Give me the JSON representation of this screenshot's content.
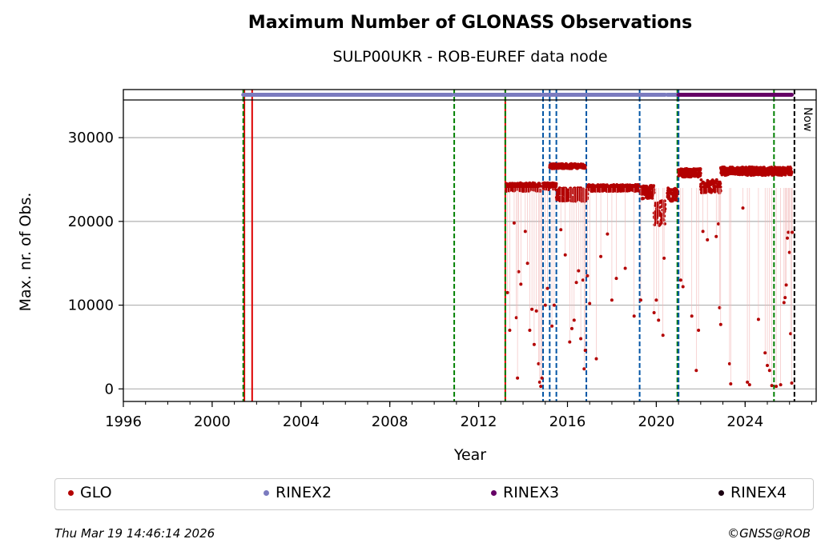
{
  "title": "Maximum Number of GLONASS Observations",
  "subtitle": "SULP00UKR - ROB-EUREF data node",
  "footer_date": "Thu Mar 19 14:46:14 2026",
  "footer_credit": "©GNSS@ROB",
  "chart_data": {
    "type": "scatter",
    "title": "Maximum Number of GLONASS Observations",
    "subtitle": "SULP00UKR - ROB-EUREF data node",
    "xlabel": "Year",
    "ylabel": "Max. nr. of Obs.",
    "xlim": [
      1996,
      2027.2
    ],
    "ylim": [
      -1500,
      34500
    ],
    "x_ticks": [
      1996,
      2000,
      2004,
      2008,
      2012,
      2016,
      2020,
      2024
    ],
    "y_ticks": [
      0,
      10000,
      20000,
      30000
    ],
    "y_tick_labels": [
      "0",
      "10000",
      "20000",
      "30000"
    ],
    "grid": "horizontal",
    "now_label": "Now",
    "now_year": 2026.22,
    "colors": {
      "glo": "#b30000",
      "rinex2": "#7b7bbf",
      "rinex3": "#660066",
      "rinex4": "#1a0010",
      "green_line": "#008000",
      "blue_line": "#0055a5",
      "red_line": "#dd0000",
      "now_line": "#000000"
    },
    "vertical_lines": {
      "red_solid": [
        2001.45,
        2001.8,
        2013.2
      ],
      "green_dashed": [
        2001.4,
        2010.9,
        2013.2,
        2020.95,
        2021.0,
        2025.3
      ],
      "blue_dashed": [
        2014.9,
        2015.2,
        2015.5,
        2016.85,
        2019.25,
        2021.0
      ]
    },
    "rinex_bars": [
      {
        "name": "RINEX2",
        "start": 2001.4,
        "end": 2010.8
      },
      {
        "name": "RINEX2",
        "start": 2010.95,
        "end": 2014.8
      },
      {
        "name": "RINEX2",
        "start": 2014.9,
        "end": 2020.4
      },
      {
        "name": "RINEX2",
        "start": 2020.5,
        "end": 2020.95
      },
      {
        "name": "RINEX3",
        "start": 2021.0,
        "end": 2026.1
      }
    ],
    "series": [
      {
        "name": "GLO",
        "segments": [
          {
            "from": 2013.25,
            "to": 2014.8,
            "value": 24100,
            "jitter": 500
          },
          {
            "from": 2014.9,
            "to": 2015.5,
            "value": 24200,
            "jitter": 400
          },
          {
            "from": 2015.2,
            "to": 2016.8,
            "value": 26600,
            "jitter": 300
          },
          {
            "from": 2015.5,
            "to": 2016.9,
            "value": 23200,
            "jitter": 800
          },
          {
            "from": 2016.9,
            "to": 2019.2,
            "value": 24000,
            "jitter": 400
          },
          {
            "from": 2019.3,
            "to": 2019.9,
            "value": 23500,
            "jitter": 800
          },
          {
            "from": 2019.9,
            "to": 2020.4,
            "value": 21000,
            "jitter": 1500
          },
          {
            "from": 2020.5,
            "to": 2020.95,
            "value": 23200,
            "jitter": 800
          },
          {
            "from": 2021.0,
            "to": 2022.0,
            "value": 25800,
            "jitter": 500
          },
          {
            "from": 2022.0,
            "to": 2022.9,
            "value": 24200,
            "jitter": 800
          },
          {
            "from": 2022.9,
            "to": 2026.1,
            "value": 26000,
            "jitter": 500
          }
        ],
        "outliers": [
          [
            2013.3,
            11500
          ],
          [
            2013.4,
            7000
          ],
          [
            2013.6,
            19800
          ],
          [
            2013.7,
            8500
          ],
          [
            2013.8,
            14000
          ],
          [
            2013.9,
            12500
          ],
          [
            2013.75,
            1300
          ],
          [
            2014.1,
            18800
          ],
          [
            2014.2,
            15000
          ],
          [
            2014.3,
            7000
          ],
          [
            2014.4,
            9500
          ],
          [
            2014.5,
            5300
          ],
          [
            2014.6,
            9300
          ],
          [
            2014.7,
            3000
          ],
          [
            2014.75,
            800
          ],
          [
            2014.8,
            300
          ],
          [
            2014.85,
            1300
          ],
          [
            2015.0,
            10000
          ],
          [
            2015.1,
            12000
          ],
          [
            2015.3,
            7500
          ],
          [
            2015.4,
            10000
          ],
          [
            2015.7,
            19000
          ],
          [
            2015.9,
            16000
          ],
          [
            2016.1,
            5600
          ],
          [
            2016.2,
            7200
          ],
          [
            2016.3,
            8200
          ],
          [
            2016.4,
            12700
          ],
          [
            2016.5,
            14100
          ],
          [
            2016.6,
            6000
          ],
          [
            2016.7,
            13000
          ],
          [
            2016.75,
            2400
          ],
          [
            2016.8,
            4600
          ],
          [
            2016.9,
            13500
          ],
          [
            2017.0,
            10200
          ],
          [
            2017.3,
            3600
          ],
          [
            2017.5,
            15800
          ],
          [
            2017.8,
            18500
          ],
          [
            2018.0,
            10600
          ],
          [
            2018.2,
            13200
          ],
          [
            2018.6,
            14400
          ],
          [
            2019.0,
            8700
          ],
          [
            2019.3,
            10600
          ],
          [
            2019.9,
            9100
          ],
          [
            2020.0,
            10600
          ],
          [
            2020.1,
            8200
          ],
          [
            2020.3,
            6400
          ],
          [
            2020.35,
            15600
          ],
          [
            2021.1,
            13000
          ],
          [
            2021.2,
            12200
          ],
          [
            2021.6,
            8700
          ],
          [
            2021.8,
            2200
          ],
          [
            2021.9,
            7000
          ],
          [
            2022.1,
            18800
          ],
          [
            2022.3,
            17800
          ],
          [
            2022.7,
            18200
          ],
          [
            2022.8,
            19700
          ],
          [
            2022.85,
            9700
          ],
          [
            2022.9,
            7700
          ],
          [
            2023.3,
            3000
          ],
          [
            2023.35,
            600
          ],
          [
            2023.9,
            21600
          ],
          [
            2024.1,
            800
          ],
          [
            2024.2,
            500
          ],
          [
            2024.6,
            8300
          ],
          [
            2024.9,
            4300
          ],
          [
            2025.0,
            2800
          ],
          [
            2025.1,
            2200
          ],
          [
            2025.2,
            400
          ],
          [
            2025.4,
            300
          ],
          [
            2025.6,
            500
          ],
          [
            2025.75,
            10300
          ],
          [
            2025.8,
            10900
          ],
          [
            2025.85,
            12400
          ],
          [
            2025.9,
            18000
          ],
          [
            2025.95,
            18700
          ],
          [
            2026.0,
            16300
          ],
          [
            2026.05,
            6600
          ],
          [
            2026.1,
            700
          ],
          [
            2026.12,
            18700
          ]
        ]
      }
    ],
    "legend": [
      "GLO",
      "RINEX2",
      "RINEX3",
      "RINEX4"
    ],
    "legend_position": "bottom"
  }
}
